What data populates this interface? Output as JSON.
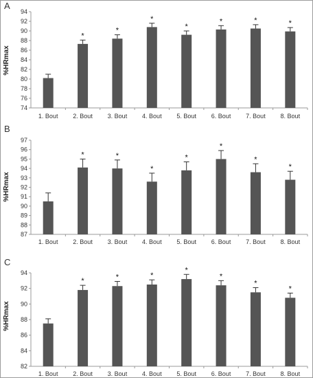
{
  "chart_data": [
    {
      "type": "bar",
      "panel_label": "A",
      "ylabel": "%HRmax",
      "ylim": [
        74,
        94
      ],
      "ytick_step": 2,
      "categories": [
        "1. Bout",
        "2. Bout",
        "3. Bout",
        "4. Bout",
        "5. Bout",
        "6. Bout",
        "7. Bout",
        "8. Bout"
      ],
      "values": [
        80.2,
        87.3,
        88.4,
        90.8,
        89.2,
        90.3,
        90.5,
        89.9
      ],
      "errors": [
        0.8,
        0.8,
        0.8,
        0.8,
        0.8,
        0.8,
        0.8,
        0.8
      ],
      "significance": [
        "",
        "*",
        "*",
        "*",
        "*",
        "*",
        "*",
        "*"
      ]
    },
    {
      "type": "bar",
      "panel_label": "B",
      "ylabel": "%HRmax",
      "ylim": [
        87,
        97
      ],
      "ytick_step": 1,
      "categories": [
        "1. Bout",
        "2. Bout",
        "3. Bout",
        "4. Bout",
        "5. Bout",
        "6. Bout",
        "7. Bout",
        "8. Bout"
      ],
      "values": [
        90.5,
        94.1,
        94.0,
        92.6,
        93.8,
        95.0,
        93.6,
        92.8
      ],
      "errors": [
        0.9,
        0.9,
        0.9,
        0.9,
        0.9,
        0.9,
        0.9,
        0.9
      ],
      "significance": [
        "",
        "*",
        "*",
        "*",
        "*",
        "*",
        "*",
        "*"
      ]
    },
    {
      "type": "bar",
      "panel_label": "C",
      "ylabel": "%HRmax",
      "ylim": [
        82,
        94
      ],
      "ytick_step": 2,
      "categories": [
        "1. Bout",
        "2. Bout",
        "3. Bout",
        "4. Bout",
        "5. Bout",
        "6. Bout",
        "7. Bout",
        "8. Bout"
      ],
      "values": [
        87.5,
        91.8,
        92.3,
        92.5,
        93.2,
        92.4,
        91.5,
        90.8
      ],
      "errors": [
        0.6,
        0.6,
        0.6,
        0.6,
        0.6,
        0.6,
        0.6,
        0.6
      ],
      "significance": [
        "",
        "*",
        "*",
        "*",
        "*",
        "*",
        "*",
        "*"
      ]
    }
  ]
}
